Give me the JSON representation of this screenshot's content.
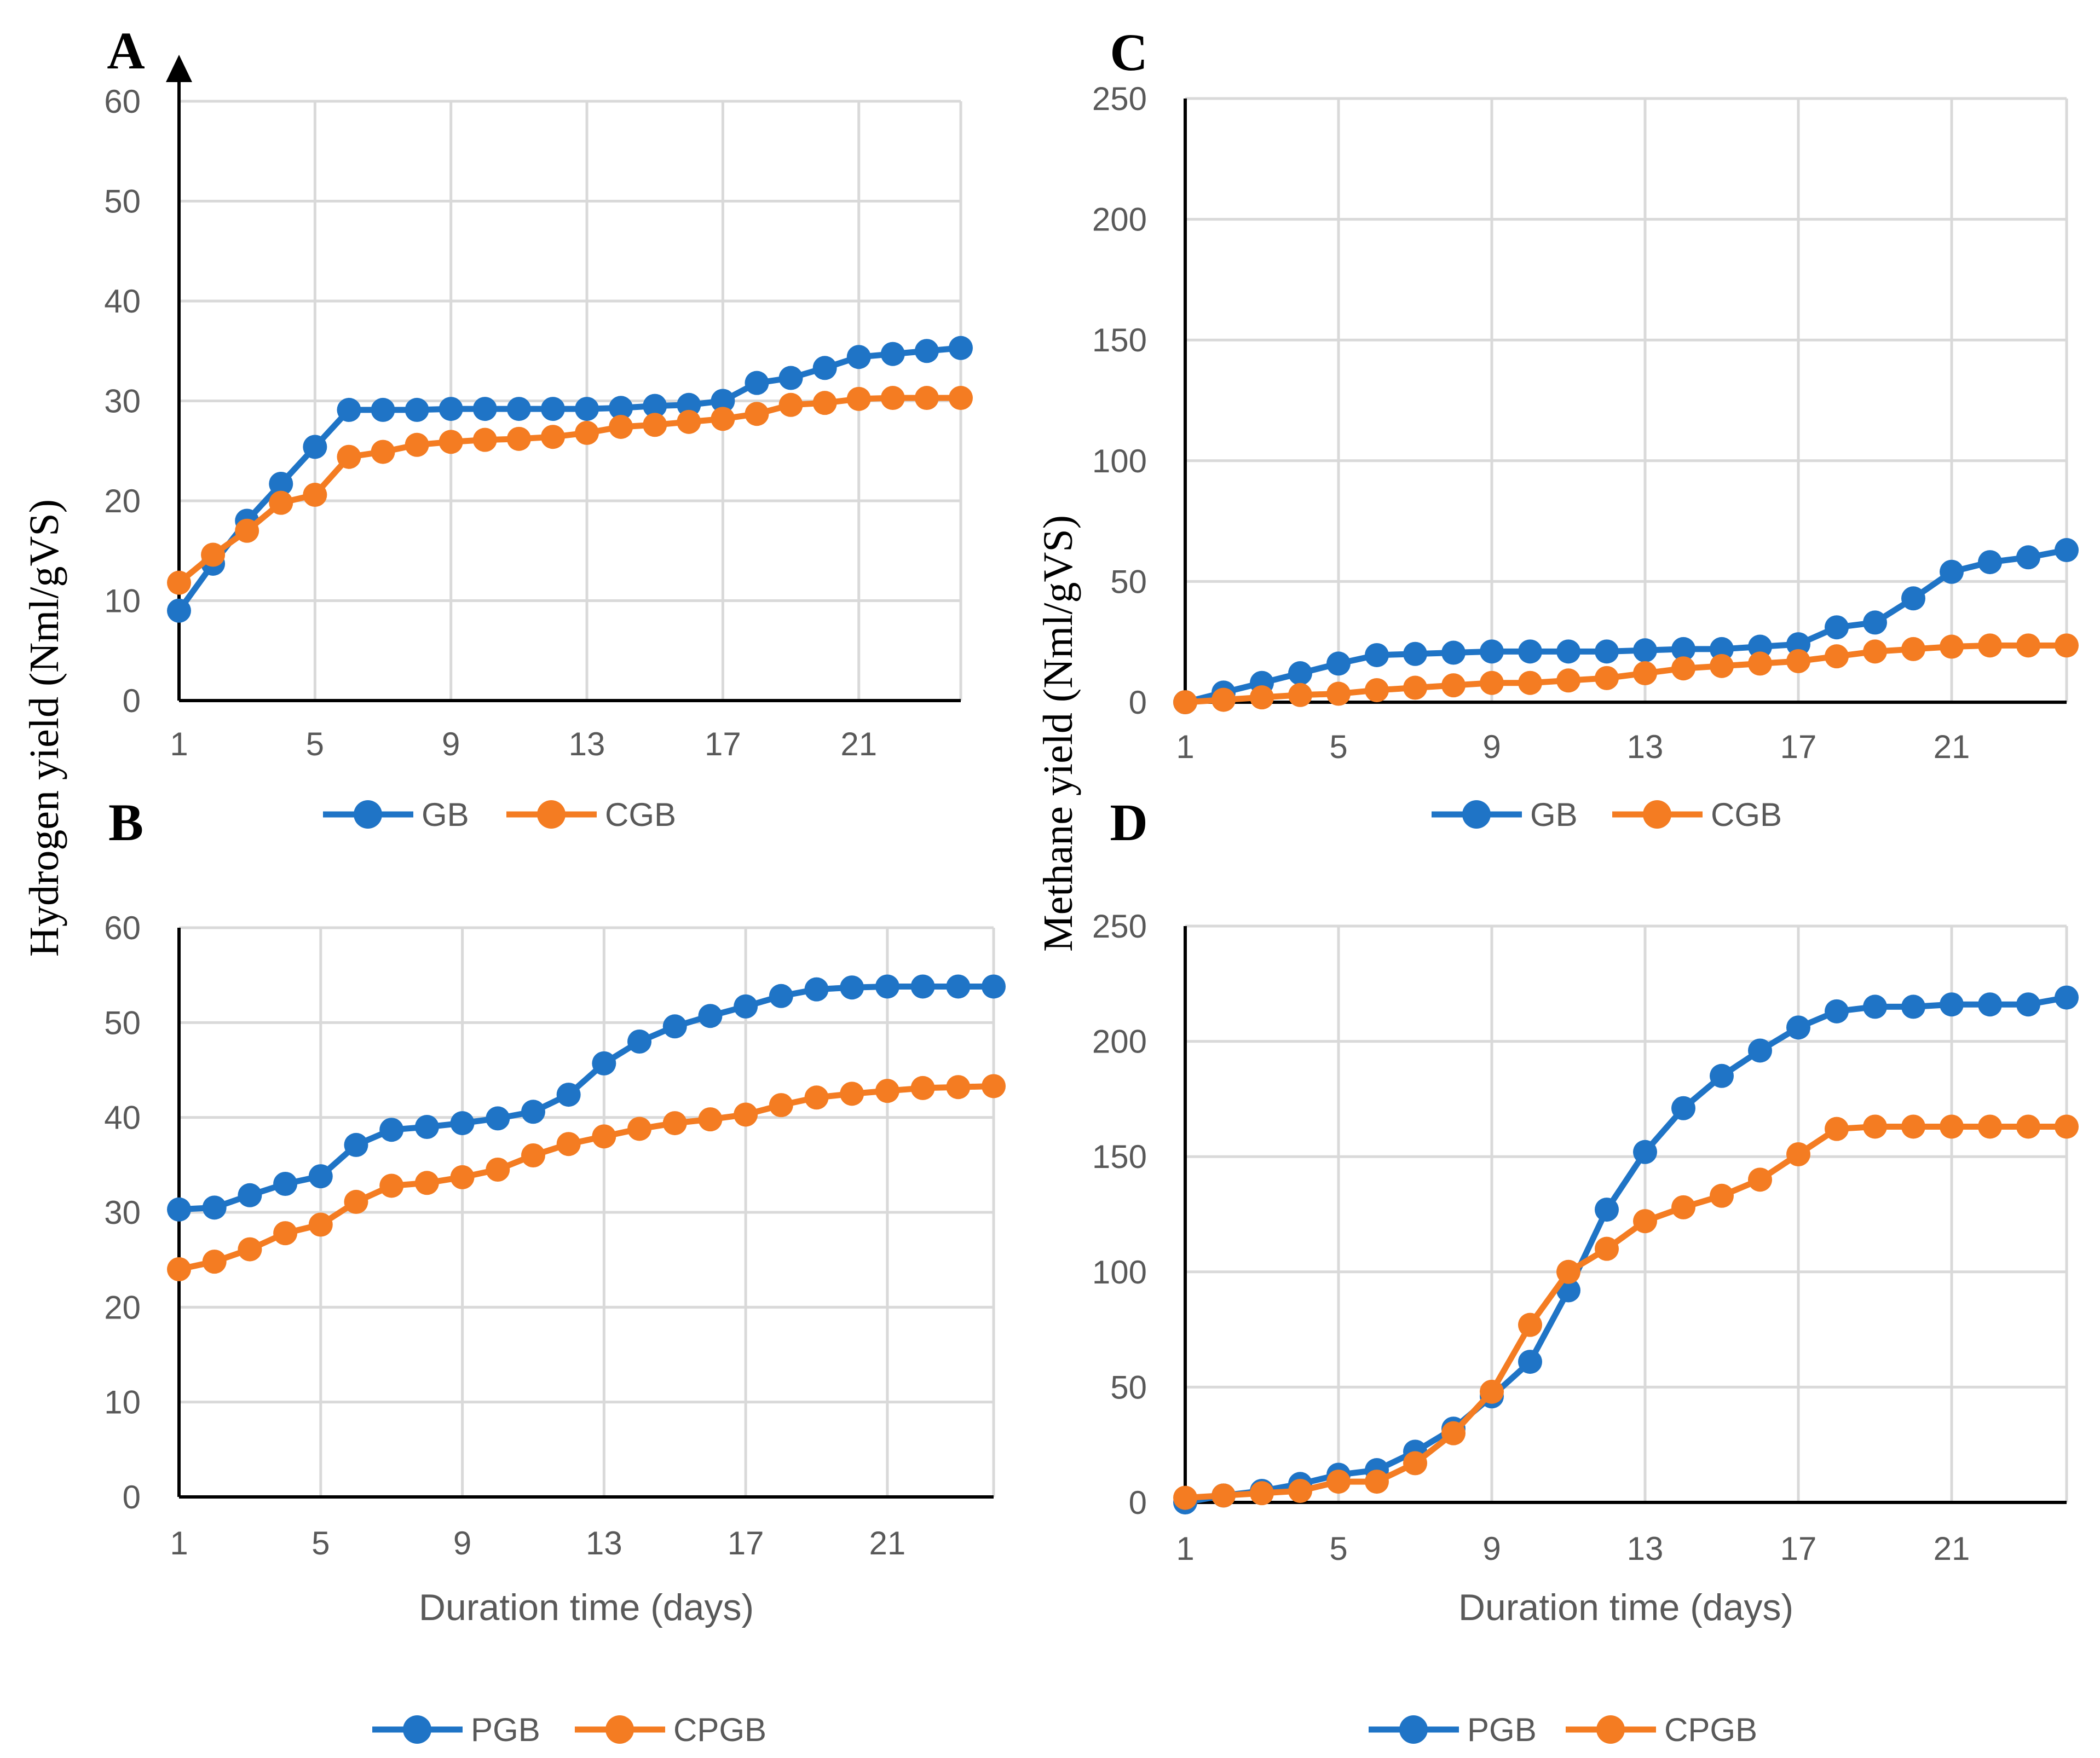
{
  "colors": {
    "series1": "#1f74c6",
    "series2": "#f47c22",
    "grid": "#d9d9d9",
    "axis": "#000000"
  },
  "labels": {
    "hydrogen_ylabel": "Hydrogen yield (Nml/gVS)",
    "methane_ylabel": "Methane yield (Nml/gVS)"
  },
  "chart_data": [
    {
      "id": "A",
      "type": "line",
      "panel_label": "A",
      "xlabel": "",
      "ylabel": "Hydrogen yield (Nml/gVS)",
      "x": [
        1,
        2,
        3,
        4,
        5,
        6,
        7,
        8,
        9,
        10,
        11,
        12,
        13,
        14,
        15,
        16,
        17,
        18,
        19,
        20,
        21,
        22,
        23,
        24
      ],
      "xticks": [
        "1",
        "5",
        "9",
        "13",
        "17",
        "21"
      ],
      "ylim": [
        0,
        60
      ],
      "yticks": [
        "0",
        "10",
        "20",
        "30",
        "40",
        "50",
        "60"
      ],
      "grid": true,
      "legend": "bottom",
      "series": [
        {
          "name": "GB",
          "values": [
            9,
            13.7,
            18,
            21.7,
            25.4,
            29.1,
            29.1,
            29.1,
            29.2,
            29.2,
            29.2,
            29.2,
            29.2,
            29.3,
            29.5,
            29.6,
            30,
            31.8,
            32.3,
            33.3,
            34.4,
            34.7,
            35,
            35.3
          ]
        },
        {
          "name": "CGB",
          "values": [
            11.8,
            14.6,
            17,
            19.8,
            20.6,
            24.4,
            24.9,
            25.6,
            25.9,
            26.1,
            26.2,
            26.4,
            26.8,
            27.4,
            27.6,
            27.9,
            28.2,
            28.7,
            29.6,
            29.8,
            30.2,
            30.3,
            30.3,
            30.3
          ]
        }
      ]
    },
    {
      "id": "B",
      "type": "line",
      "panel_label": "B",
      "xlabel": "Duration time (days)",
      "ylabel": "Hydrogen yield (Nml/gVS)",
      "x": [
        1,
        2,
        3,
        4,
        5,
        6,
        7,
        8,
        9,
        10,
        11,
        12,
        13,
        14,
        15,
        16,
        17,
        18,
        19,
        20,
        21,
        22,
        23,
        24
      ],
      "xticks": [
        "1",
        "5",
        "9",
        "13",
        "17",
        "21"
      ],
      "ylim": [
        0,
        60
      ],
      "yticks": [
        "0",
        "10",
        "20",
        "30",
        "40",
        "50",
        "60"
      ],
      "grid": true,
      "legend": "bottom",
      "series": [
        {
          "name": "PGB",
          "values": [
            30.3,
            30.5,
            31.8,
            33,
            33.8,
            37.1,
            38.7,
            39,
            39.4,
            39.9,
            40.6,
            42.4,
            45.7,
            48,
            49.6,
            50.7,
            51.7,
            52.8,
            53.5,
            53.7,
            53.8,
            53.8,
            53.8,
            53.8
          ]
        },
        {
          "name": "CPGB",
          "values": [
            24,
            24.8,
            26.1,
            27.8,
            28.7,
            31.1,
            32.8,
            33.1,
            33.7,
            34.5,
            36,
            37.2,
            38,
            38.8,
            39.4,
            39.8,
            40.3,
            41.3,
            42.1,
            42.5,
            42.8,
            43.1,
            43.2,
            43.3
          ]
        }
      ]
    },
    {
      "id": "C",
      "type": "line",
      "panel_label": "C",
      "xlabel": "",
      "ylabel": "Methane yield (Nml/gVS)",
      "x": [
        1,
        2,
        3,
        4,
        5,
        6,
        7,
        8,
        9,
        10,
        11,
        12,
        13,
        14,
        15,
        16,
        17,
        18,
        19,
        20,
        21,
        22,
        23,
        24
      ],
      "xticks": [
        "1",
        "5",
        "9",
        "13",
        "17",
        "21"
      ],
      "ylim": [
        0,
        250
      ],
      "yticks": [
        "0",
        "50",
        "100",
        "150",
        "200",
        "250"
      ],
      "grid": true,
      "legend": "bottom",
      "series": [
        {
          "name": "GB",
          "values": [
            0,
            4,
            8,
            12,
            16,
            19.5,
            20,
            20.5,
            21,
            21,
            21,
            21,
            21.5,
            22,
            22,
            23,
            24,
            31,
            33,
            43,
            54,
            58,
            60,
            63
          ]
        },
        {
          "name": "CGB",
          "values": [
            0,
            1,
            2,
            3,
            3.5,
            5,
            6,
            7,
            8,
            8,
            9,
            10,
            12,
            14,
            15,
            16,
            17,
            19,
            21,
            22,
            23,
            23.5,
            23.5,
            23.5
          ]
        }
      ]
    },
    {
      "id": "D",
      "type": "line",
      "panel_label": "D",
      "xlabel": "Duration time (days)",
      "ylabel": "Methane yield (Nml/gVS)",
      "x": [
        1,
        2,
        3,
        4,
        5,
        6,
        7,
        8,
        9,
        10,
        11,
        12,
        13,
        14,
        15,
        16,
        17,
        18,
        19,
        20,
        21,
        22,
        23,
        24
      ],
      "xticks": [
        "1",
        "5",
        "9",
        "13",
        "17",
        "21"
      ],
      "ylim": [
        0,
        250
      ],
      "yticks": [
        "0",
        "50",
        "100",
        "150",
        "200",
        "250"
      ],
      "grid": true,
      "legend": "bottom",
      "series": [
        {
          "name": "PGB",
          "values": [
            0,
            3,
            5,
            8,
            12,
            14,
            22,
            32,
            46,
            61,
            92,
            127,
            152,
            171,
            185,
            196,
            206,
            213,
            215,
            215,
            216,
            216,
            216,
            219
          ]
        },
        {
          "name": "CPGB",
          "values": [
            2,
            3,
            4,
            5,
            9,
            9,
            17,
            30,
            48,
            77,
            100,
            110,
            122,
            128,
            133,
            140,
            151,
            162,
            163,
            163,
            163,
            163,
            163,
            163
          ]
        }
      ]
    }
  ]
}
